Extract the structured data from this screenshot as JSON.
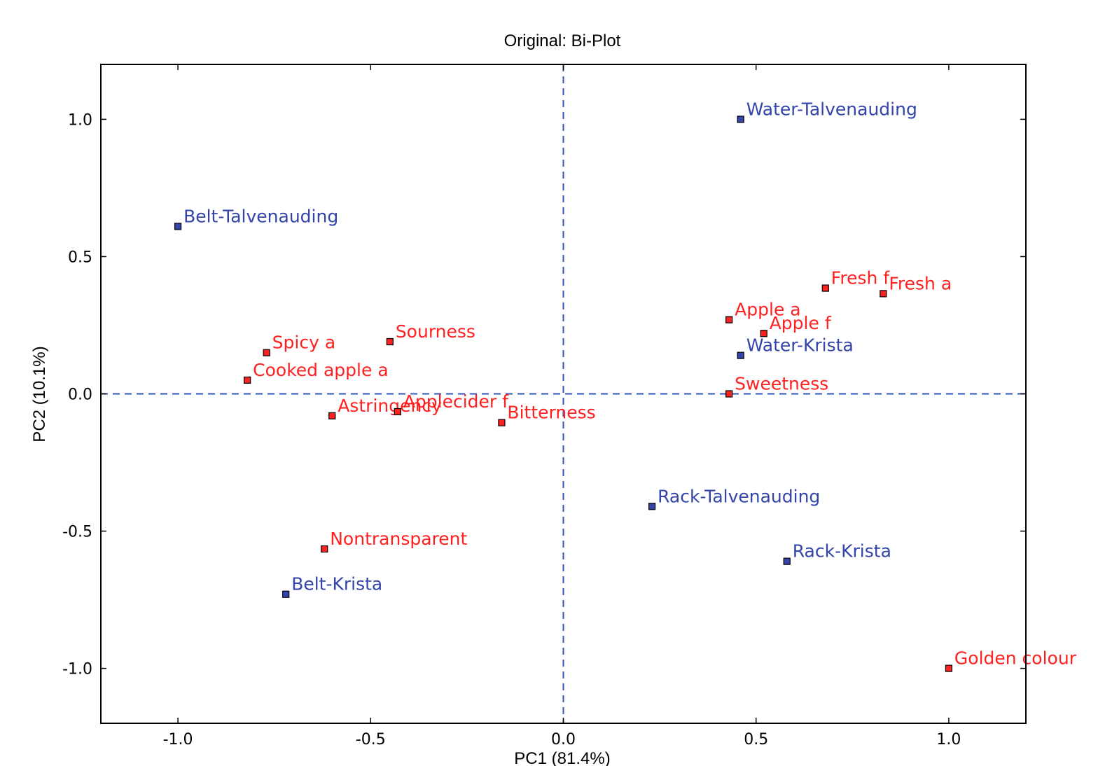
{
  "chart_data": {
    "type": "scatter",
    "title": "Original: Bi-Plot",
    "xlabel": "PC1 (81.4%)",
    "ylabel": "PC2 (10.1%)",
    "xlim": [
      -1.2,
      1.2
    ],
    "ylim": [
      -1.2,
      1.2
    ],
    "xticks": [
      -1.0,
      -0.5,
      0.0,
      0.5,
      1.0
    ],
    "xtick_labels": [
      "-1.0",
      "-0.5",
      "0.0",
      "0.5",
      "1.0"
    ],
    "yticks": [
      1.0,
      0.5,
      0.0,
      -0.5,
      -1.0
    ],
    "ytick_labels": [
      "1.0",
      "0.5",
      "0.0",
      "-0.5",
      "-1.0"
    ],
    "grid": false,
    "reference_lines": {
      "x": 0.0,
      "y": 0.0,
      "style": "dashed",
      "color": "#3355bb"
    },
    "colors": {
      "samples": "#3344aa",
      "attributes": "#ff2020"
    },
    "series": [
      {
        "group": "samples",
        "points": [
          {
            "label": "Water-Talvenauding",
            "x": 0.46,
            "y": 1.0
          },
          {
            "label": "Belt-Talvenauding",
            "x": -1.0,
            "y": 0.61
          },
          {
            "label": "Water-Krista",
            "x": 0.46,
            "y": 0.14
          },
          {
            "label": "Rack-Talvenauding",
            "x": 0.23,
            "y": -0.41
          },
          {
            "label": "Rack-Krista",
            "x": 0.58,
            "y": -0.61
          },
          {
            "label": "Belt-Krista",
            "x": -0.72,
            "y": -0.73
          }
        ]
      },
      {
        "group": "attributes",
        "points": [
          {
            "label": "Fresh f",
            "x": 0.68,
            "y": 0.385
          },
          {
            "label": "Fresh a",
            "x": 0.83,
            "y": 0.365
          },
          {
            "label": "Apple a",
            "x": 0.43,
            "y": 0.27
          },
          {
            "label": "Apple f",
            "x": 0.52,
            "y": 0.22
          },
          {
            "label": "Sweetness",
            "x": 0.43,
            "y": 0.0
          },
          {
            "label": "Spicy a",
            "x": -0.77,
            "y": 0.15
          },
          {
            "label": "Sourness",
            "x": -0.45,
            "y": 0.19
          },
          {
            "label": "Cooked apple a",
            "x": -0.82,
            "y": 0.05
          },
          {
            "label": "Astringency",
            "x": -0.6,
            "y": -0.08
          },
          {
            "label": "Applecider f",
            "x": -0.43,
            "y": -0.065
          },
          {
            "label": "Bitterness",
            "x": -0.16,
            "y": -0.105
          },
          {
            "label": "Nontransparent",
            "x": -0.62,
            "y": -0.565
          },
          {
            "label": "Golden colour",
            "x": 1.0,
            "y": -1.0
          }
        ]
      }
    ]
  }
}
